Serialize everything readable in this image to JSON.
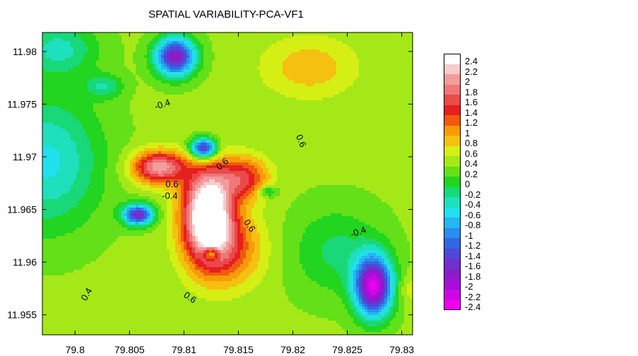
{
  "chart_data": {
    "type": "heatmap",
    "title": "SPATIAL VARIABILITY-PCA-VF1",
    "xlabel": "",
    "ylabel": "",
    "xlim": [
      79.797,
      79.831
    ],
    "ylim": [
      11.9531,
      11.9818
    ],
    "x_ticks": [
      "79.8",
      "79.805",
      "79.81",
      "79.815",
      "79.82",
      "79.825",
      "79.83"
    ],
    "x_tick_values": [
      79.8,
      79.805,
      79.81,
      79.815,
      79.82,
      79.825,
      79.83
    ],
    "y_ticks": [
      "11.98",
      "11.975",
      "11.97",
      "11.965",
      "11.96",
      "11.955"
    ],
    "y_tick_values": [
      11.98,
      11.975,
      11.97,
      11.965,
      11.96,
      11.955
    ],
    "contour_labels": [
      {
        "text": "-0.4",
        "x": 79.8081,
        "y": 11.9747,
        "angle": -18
      },
      {
        "text": "0.6",
        "x": 79.8205,
        "y": 11.9714,
        "angle": 68
      },
      {
        "text": "0.6",
        "x": 79.8137,
        "y": 11.9691,
        "angle": -40
      },
      {
        "text": "0.6",
        "x": 79.8089,
        "y": 11.9671,
        "angle": 0
      },
      {
        "text": "-0.4",
        "x": 79.8087,
        "y": 11.966,
        "angle": 0
      },
      {
        "text": "0.6",
        "x": 79.8158,
        "y": 11.9633,
        "angle": 55
      },
      {
        "text": "-0.4",
        "x": 79.8261,
        "y": 11.9626,
        "angle": -20
      },
      {
        "text": "0.4",
        "x": 79.8013,
        "y": 11.9568,
        "angle": -60
      },
      {
        "text": "0.6",
        "x": 79.8104,
        "y": 11.9564,
        "angle": 35
      }
    ],
    "features": [
      {
        "x": 79.8092,
        "y": 11.9795,
        "amp": -2.2,
        "sx": 0.0013,
        "sy": 0.0013
      },
      {
        "x": 79.8027,
        "y": 11.9767,
        "amp": -0.6,
        "sx": 0.0012,
        "sy": 0.0008
      },
      {
        "x": 79.7975,
        "y": 11.9695,
        "amp": -0.9,
        "sx": 0.0035,
        "sy": 0.0045
      },
      {
        "x": 79.7985,
        "y": 11.9803,
        "amp": -0.7,
        "sx": 0.0025,
        "sy": 0.0018
      },
      {
        "x": 79.8118,
        "y": 11.9708,
        "amp": -2.2,
        "sx": 0.00085,
        "sy": 0.0007
      },
      {
        "x": 79.8058,
        "y": 11.9645,
        "amp": -2.0,
        "sx": 0.001,
        "sy": 0.0007
      },
      {
        "x": 79.8077,
        "y": 11.969,
        "amp": 1.7,
        "sx": 0.0017,
        "sy": 0.0011
      },
      {
        "x": 79.8122,
        "y": 11.9647,
        "amp": 2.6,
        "sx": 0.0016,
        "sy": 0.003
      },
      {
        "x": 79.8155,
        "y": 11.968,
        "amp": 1.1,
        "sx": 0.0016,
        "sy": 0.0014
      },
      {
        "x": 79.814,
        "y": 11.9612,
        "amp": 0.9,
        "sx": 0.0023,
        "sy": 0.0024
      },
      {
        "x": 79.8125,
        "y": 11.9608,
        "amp": -1.2,
        "sx": 0.0005,
        "sy": 0.0004
      },
      {
        "x": 79.8177,
        "y": 11.9667,
        "amp": -0.7,
        "sx": 0.0006,
        "sy": 0.0004
      },
      {
        "x": 79.8215,
        "y": 11.9785,
        "amp": 0.5,
        "sx": 0.003,
        "sy": 0.002
      },
      {
        "x": 79.8274,
        "y": 11.9577,
        "amp": -2.6,
        "sx": 0.0012,
        "sy": 0.002
      },
      {
        "x": 79.824,
        "y": 11.961,
        "amp": -0.5,
        "sx": 0.003,
        "sy": 0.003
      },
      {
        "x": 79.831,
        "y": 11.9575,
        "amp": 0.3,
        "sx": 0.001,
        "sy": 0.001
      }
    ],
    "base_value": 0.35,
    "legend": {
      "levels": [
        "2.4",
        "2.2",
        "2",
        "1.8",
        "1.6",
        "1.4",
        "1.2",
        "1",
        "0.8",
        "0.6",
        "0.4",
        "0.2",
        "0",
        "-0.2",
        "-0.4",
        "-0.6",
        "-0.8",
        "-1",
        "-1.2",
        "-1.4",
        "-1.6",
        "-1.8",
        "-2",
        "-2.2",
        "-2.4"
      ],
      "colors": [
        "#ffffff",
        "#f7cccc",
        "#f29c9c",
        "#ef7777",
        "#ea4a4a",
        "#e61f1f",
        "#ef5a0e",
        "#f79a0a",
        "#f5c010",
        "#d5ef14",
        "#a5e817",
        "#64e018",
        "#22d520",
        "#18d877",
        "#1ee0bc",
        "#20e0ee",
        "#25b7f0",
        "#2c8dec",
        "#3068e4",
        "#5048d8",
        "#7030d0",
        "#8c1cc8",
        "#a80ed8",
        "#cc08e6",
        "#f000f0"
      ]
    }
  }
}
